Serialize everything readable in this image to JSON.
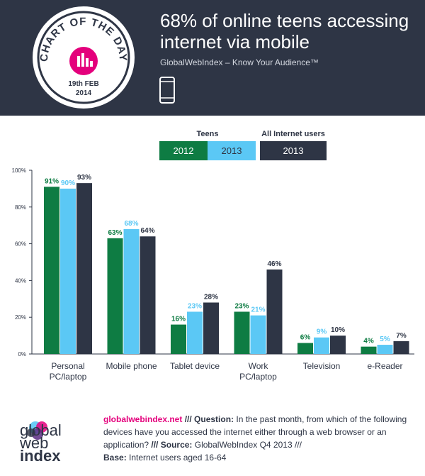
{
  "header": {
    "title_line1": "68% of online teens accessing",
    "title_line2": "internet via mobile",
    "subtitle": "GlobalWebIndex – Know Your Audience™",
    "badge_text": "CHART OF THE DAY",
    "badge_date": "19th FEB",
    "badge_year": "2014",
    "device_icon": "smartphone-icon"
  },
  "legend": {
    "teens_label": "Teens",
    "all_label": "All Internet users",
    "items": [
      {
        "label": "2012",
        "color": "#0e7c43",
        "text_color": "#ffffff"
      },
      {
        "label": "2013",
        "color": "#5bc8f5",
        "text_color": "#2e3545"
      },
      {
        "label": "2013",
        "color": "#2e3545",
        "text_color": "#ffffff"
      }
    ]
  },
  "chart_data": {
    "type": "bar",
    "categories": [
      "Personal\nPC/laptop",
      "Mobile phone",
      "Tablet device",
      "Work\nPC/laptop",
      "Television",
      "e-Reader"
    ],
    "series": [
      {
        "name": "Teens 2012",
        "color": "#0e7c43",
        "label_color": "#0e7c43",
        "values": [
          91,
          63,
          16,
          23,
          6,
          4
        ]
      },
      {
        "name": "Teens 2013",
        "color": "#5bc8f5",
        "label_color": "#5bc8f5",
        "values": [
          90,
          68,
          23,
          21,
          9,
          5
        ]
      },
      {
        "name": "All Internet users 2013",
        "color": "#2e3545",
        "label_color": "#2e3545",
        "values": [
          93,
          64,
          28,
          46,
          10,
          7
        ]
      }
    ],
    "ylim": [
      0,
      100
    ],
    "yticks": [
      0,
      20,
      40,
      60,
      80,
      100
    ],
    "ytick_labels": [
      "0%",
      "20%",
      "40%",
      "60%",
      "80%",
      "100%"
    ],
    "data_label_suffix": "%",
    "grid": false
  },
  "footer": {
    "logo_line1": "global",
    "logo_line2": "web",
    "logo_line3": "index",
    "source": "globalwebindex.net",
    "q_sep": " /// ",
    "q_label": "Question:",
    "question": " In the past month, from which of the following devices have you accessed the internet either through a web browser or an application? ",
    "s_sep": "/// ",
    "s_label": "Source:",
    "source_text": " GlobalWebIndex Q4 2013 ///",
    "b_label": "Base:",
    "base_text": " Internet users aged 16-64"
  }
}
